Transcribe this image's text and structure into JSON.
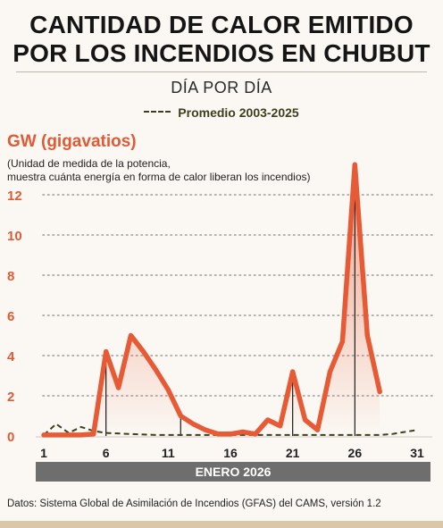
{
  "title_line1": "CANTIDAD DE CALOR EMITIDO",
  "title_line2": "POR LOS INCENDIOS EN CHUBUT",
  "subtitle": "DÍA POR DÍA",
  "legend_label": "Promedio 2003-2025",
  "unit_label": "GW (gigavatios)",
  "unit_note_line1": "(Unidad de medida de la potencia,",
  "unit_note_line2": "muestra cuánta energía en forma de calor liberan los incendios)",
  "x_band_label": "ENERO 2026",
  "source": "Datos: Sistema Global de Asimilación de Incendios (GFAS) del CAMS, versión 1.2",
  "colors": {
    "series": "#e65a36",
    "average": "#3d3f1e",
    "grid": "#9a9a9a",
    "axis_text": "#e05a35",
    "band": "#6e6e6e"
  },
  "chart_data": {
    "type": "line",
    "xlabel": "ENERO 2026",
    "ylabel": "GW (gigavatios)",
    "xlim": [
      1,
      31
    ],
    "ylim": [
      0,
      13
    ],
    "x_ticks": [
      1,
      6,
      11,
      16,
      21,
      26,
      31
    ],
    "y_ticks": [
      0,
      2,
      4,
      6,
      8,
      10,
      12
    ],
    "grid": "horizontal dotted",
    "series": [
      {
        "name": "",
        "style": "solid-area",
        "points": [
          [
            1,
            0.05
          ],
          [
            2,
            0.05
          ],
          [
            3,
            0.05
          ],
          [
            4,
            0.05
          ],
          [
            5,
            0.1
          ],
          [
            6,
            4.2
          ],
          [
            7,
            2.4
          ],
          [
            8,
            5.0
          ],
          [
            9,
            4.2
          ],
          [
            10,
            3.3
          ],
          [
            11,
            2.3
          ],
          [
            12,
            1.0
          ],
          [
            13,
            0.6
          ],
          [
            14,
            0.3
          ],
          [
            15,
            0.1
          ],
          [
            16,
            0.1
          ],
          [
            17,
            0.2
          ],
          [
            18,
            0.1
          ],
          [
            19,
            0.8
          ],
          [
            20,
            0.5
          ],
          [
            21,
            3.2
          ],
          [
            22,
            0.8
          ],
          [
            23,
            0.3
          ],
          [
            24,
            3.2
          ],
          [
            25,
            4.7
          ],
          [
            26,
            13.5
          ],
          [
            27,
            5.0
          ],
          [
            28,
            2.2
          ]
        ]
      },
      {
        "name": "Promedio 2003-2025",
        "style": "dashed",
        "points": [
          [
            1,
            0.05
          ],
          [
            2,
            0.6
          ],
          [
            3,
            0.15
          ],
          [
            4,
            0.45
          ],
          [
            5,
            0.25
          ],
          [
            6,
            0.15
          ],
          [
            8,
            0.1
          ],
          [
            10,
            0.05
          ],
          [
            14,
            0.05
          ],
          [
            18,
            0.05
          ],
          [
            22,
            0.05
          ],
          [
            26,
            0.05
          ],
          [
            28,
            0.05
          ],
          [
            29,
            0.1
          ],
          [
            30,
            0.2
          ],
          [
            31,
            0.3
          ]
        ]
      }
    ],
    "annotated_days": [
      6,
      12,
      21,
      26
    ]
  }
}
